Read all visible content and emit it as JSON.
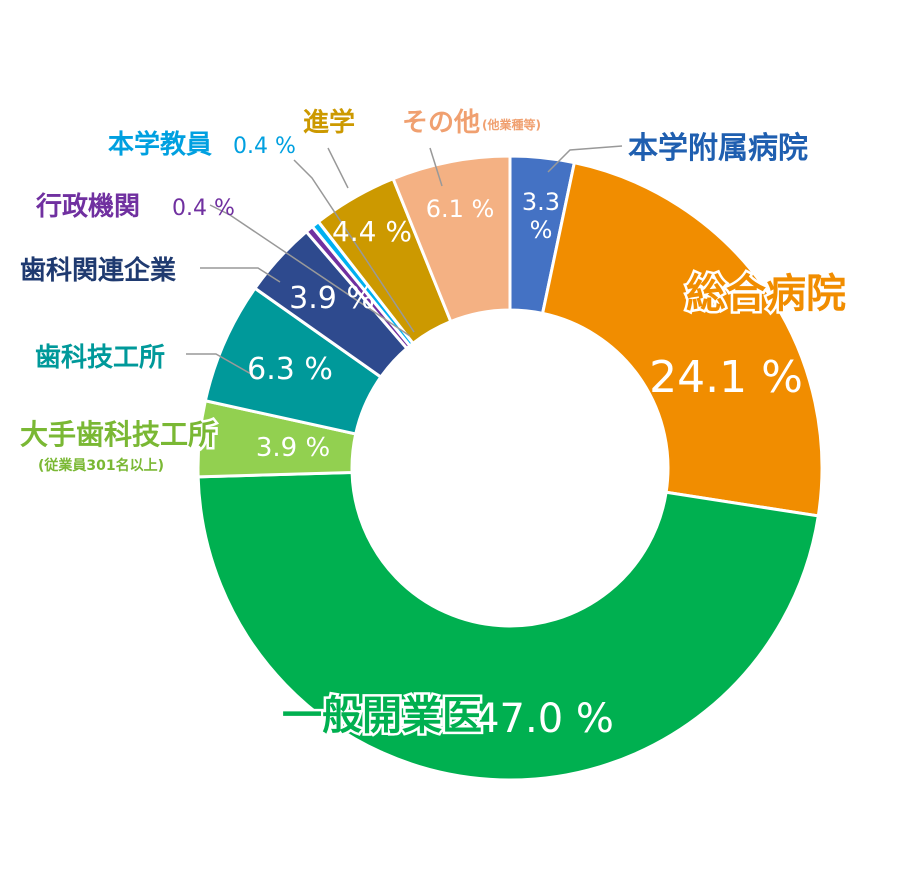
{
  "chart_data": {
    "type": "pie",
    "variant": "donut",
    "legend": "none",
    "slices": [
      {
        "name": "本学附属病院",
        "value": 3.3,
        "color": "#4472c4",
        "label_color": "#1f5fb0"
      },
      {
        "name": "総合病院",
        "value": 24.1,
        "color": "#f18d00",
        "label_color": "#f18d00"
      },
      {
        "name": "一般開業医",
        "value": 47.0,
        "color": "#00b050",
        "label_color": "#00b050"
      },
      {
        "name": "大手歯科技工所",
        "note": "(従業員301名以上)",
        "value": 3.9,
        "color": "#92d050",
        "label_color": "#7ab834"
      },
      {
        "name": "歯科技工所",
        "value": 6.3,
        "color": "#00999a",
        "label_color": "#00999a"
      },
      {
        "name": "歯科関連企業",
        "value": 3.9,
        "color": "#2e4a8e",
        "label_color": "#1f3a70"
      },
      {
        "name": "行政機関",
        "value": 0.4,
        "color": "#7030a0",
        "label_color": "#7030a0"
      },
      {
        "name": "本学教員",
        "value": 0.4,
        "color": "#00b0f0",
        "label_color": "#00a0e0"
      },
      {
        "name": "進学",
        "value": 4.4,
        "color": "#cc9900",
        "label_color": "#cc9900"
      },
      {
        "name": "その他",
        "note": "(他業種等)",
        "value": 6.1,
        "color": "#f4b183",
        "label_color": "#f0a070"
      }
    ],
    "percent_labels": [
      "3.3\n%",
      "24.1 %",
      "47.0 %",
      "3.9 %",
      "6.3 %",
      "3.9 %",
      "0.4 %",
      "0.4 %",
      "4.4 %",
      "6.1 %"
    ],
    "unit": "%"
  }
}
